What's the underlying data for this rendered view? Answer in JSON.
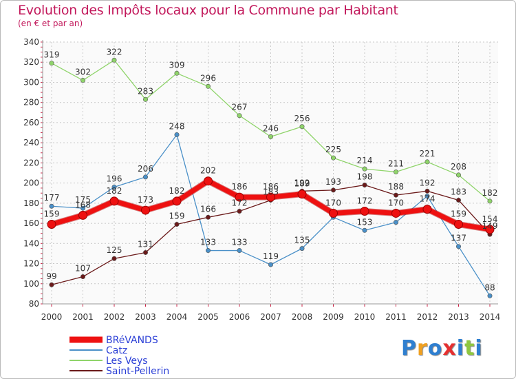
{
  "chart_data": {
    "type": "line",
    "title": "Evolution des Impôts locaux pour la Commune par Habitant",
    "subtitle": "(en € et par an)",
    "categories": [
      "2000",
      "2001",
      "2002",
      "2003",
      "2004",
      "2005",
      "2006",
      "2007",
      "2008",
      "2009",
      "2010",
      "2011",
      "2012",
      "2013",
      "2014"
    ],
    "ylim": [
      80,
      340
    ],
    "yticks": [
      80,
      100,
      120,
      140,
      160,
      180,
      200,
      220,
      240,
      260,
      280,
      300,
      320,
      340
    ],
    "grid": true,
    "legend_position": "bottom-left",
    "series": [
      {
        "name": "Catz",
        "color": "#4a90c8",
        "values": [
          177,
          175,
          196,
          206,
          248,
          133,
          133,
          119,
          135,
          166,
          153,
          161,
          187,
          137,
          88
        ],
        "labels": [
          "177",
          "175",
          "196",
          "206",
          "248",
          "133",
          "133",
          "119",
          "135",
          "",
          "153",
          "",
          "",
          "137",
          "88"
        ]
      },
      {
        "name": "Les Veys",
        "color": "#8fd46a",
        "values": [
          319,
          302,
          322,
          283,
          309,
          296,
          267,
          246,
          256,
          225,
          214,
          211,
          221,
          208,
          182
        ],
        "labels": [
          "319",
          "302",
          "322",
          "283",
          "309",
          "296",
          "267",
          "246",
          "256",
          "225",
          "214",
          "211",
          "221",
          "208",
          "182"
        ]
      },
      {
        "name": "Saint-Pellerin",
        "color": "#6b1a1a",
        "values": [
          99,
          107,
          125,
          131,
          159,
          166,
          172,
          183,
          192,
          193,
          198,
          188,
          192,
          183,
          149
        ],
        "labels": [
          "99",
          "107",
          "125",
          "131",
          "159",
          "166",
          "172",
          "183",
          "192",
          "193",
          "198",
          "188",
          "192",
          "183",
          "149"
        ]
      },
      {
        "name": "BRéVANDS",
        "color": "#ee1111",
        "values": [
          159,
          168,
          182,
          173,
          182,
          202,
          186,
          186,
          189,
          170,
          172,
          170,
          174,
          159,
          154
        ],
        "labels": [
          "159",
          "168",
          "182",
          "173",
          "182",
          "202",
          "186",
          "186",
          "189",
          "170",
          "172",
          "170",
          "174",
          "159",
          "154"
        ]
      }
    ],
    "legend_order": [
      "BRéVANDS",
      "Catz",
      "Les Veys",
      "Saint-Pellerin"
    ]
  },
  "logo": {
    "letters": [
      "P",
      "r",
      "o",
      "x",
      "i",
      "t",
      "i"
    ],
    "colors": [
      "#2f7fd0",
      "#f0a020",
      "#2f7fd0",
      "#e53030",
      "#2f7fd0",
      "#8fc740",
      "#2f7fd0"
    ]
  }
}
